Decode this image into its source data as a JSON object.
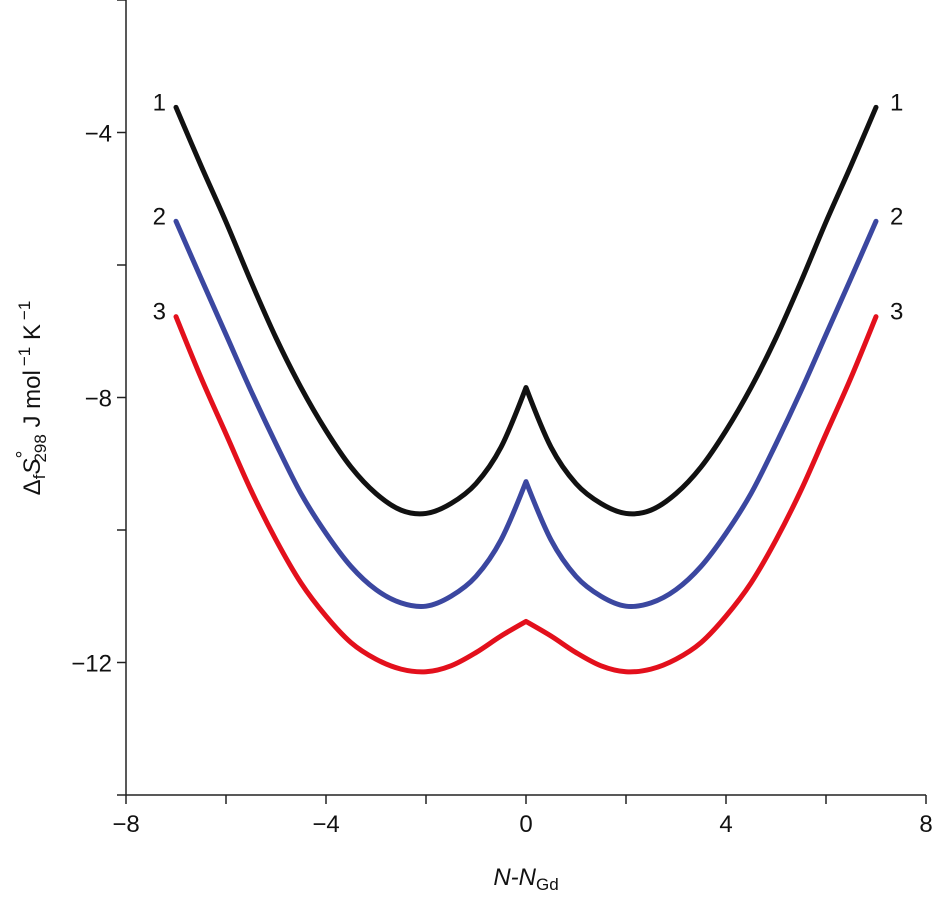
{
  "chart_data": {
    "type": "line",
    "title": "",
    "xlabel": {
      "main": "N-N",
      "sub": "Gd"
    },
    "ylabel": {
      "delta": "Δ",
      "sub_f": "f",
      "S": "S",
      "sup": "°",
      "sub_t": "298",
      "units": " J mol",
      "exp1": "−1",
      "K": " K",
      "exp2": "−1"
    },
    "xlim": [
      -8,
      8
    ],
    "ylim": [
      -14,
      -2
    ],
    "x_ticks": [
      -8,
      -6,
      -4,
      -2,
      0,
      2,
      4,
      6,
      8
    ],
    "x_tick_labels": [
      {
        "v": -8,
        "t": "−8"
      },
      {
        "v": -4,
        "t": "−4"
      },
      {
        "v": 0,
        "t": "0"
      },
      {
        "v": 4,
        "t": "4"
      },
      {
        "v": 8,
        "t": "8"
      }
    ],
    "y_ticks": [
      -2,
      -4,
      -6,
      -8,
      -10,
      -12,
      -14
    ],
    "y_tick_labels": [
      {
        "v": -4,
        "t": "−4"
      },
      {
        "v": -8,
        "t": "−8"
      },
      {
        "v": -12,
        "t": "−12"
      }
    ],
    "grid": false,
    "x": [
      -7,
      -6.5,
      -6,
      -5.5,
      -5,
      -4.5,
      -4,
      -3.5,
      -3,
      -2.5,
      -2,
      -1.5,
      -1,
      -0.5,
      0,
      0.5,
      1,
      1.5,
      2,
      2.5,
      3,
      3.5,
      4,
      4.5,
      5,
      5.5,
      6,
      6.5,
      7
    ],
    "series": [
      {
        "label": "1",
        "color": "#111111",
        "values": [
          -3.62,
          -4.5,
          -5.35,
          -6.25,
          -7.1,
          -7.85,
          -8.5,
          -9.05,
          -9.45,
          -9.7,
          -9.75,
          -9.6,
          -9.3,
          -8.75,
          -7.85,
          -8.75,
          -9.3,
          -9.6,
          -9.75,
          -9.7,
          -9.45,
          -9.05,
          -8.5,
          -7.85,
          -7.1,
          -6.25,
          -5.35,
          -4.5,
          -3.62
        ]
      },
      {
        "label": "2",
        "color": "#3b47a0",
        "values": [
          -5.34,
          -6.2,
          -7.05,
          -7.9,
          -8.7,
          -9.45,
          -10.05,
          -10.55,
          -10.9,
          -11.1,
          -11.15,
          -11.0,
          -10.7,
          -10.15,
          -9.27,
          -10.15,
          -10.7,
          -11.0,
          -11.15,
          -11.1,
          -10.9,
          -10.55,
          -10.05,
          -9.45,
          -8.7,
          -7.9,
          -7.05,
          -6.2,
          -5.34
        ]
      },
      {
        "label": "3",
        "color": "#e3101c",
        "values": [
          -6.78,
          -7.7,
          -8.55,
          -9.4,
          -10.15,
          -10.8,
          -11.3,
          -11.7,
          -11.95,
          -12.1,
          -12.14,
          -12.05,
          -11.85,
          -11.6,
          -11.38,
          -11.6,
          -11.85,
          -12.05,
          -12.14,
          -12.1,
          -11.95,
          -11.7,
          -11.3,
          -10.8,
          -10.15,
          -9.4,
          -8.55,
          -7.7,
          -6.78
        ]
      }
    ]
  }
}
